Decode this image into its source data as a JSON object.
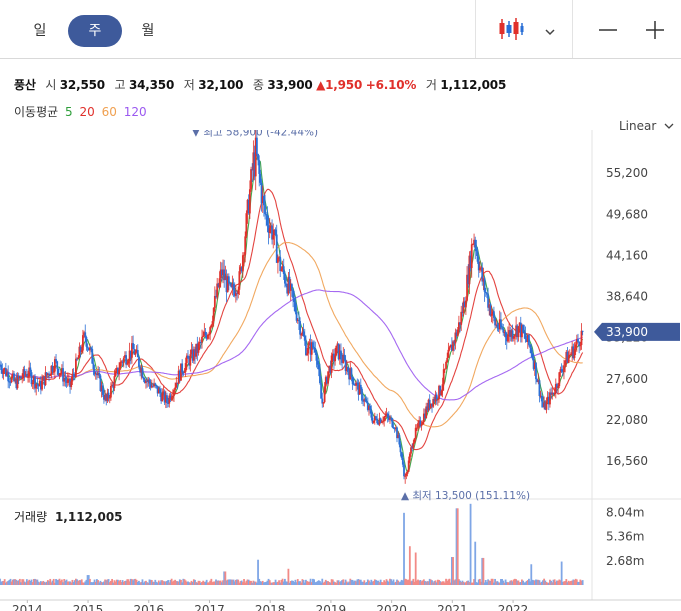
{
  "toolbar": {
    "periods": [
      "일",
      "주",
      "월"
    ],
    "active_period": "주",
    "chart_style_icon": "candlestick-icon",
    "dropdown_icon": "chevron-down-icon",
    "zoom_out_icon": "minus-icon",
    "zoom_in_icon": "plus-icon"
  },
  "quote": {
    "name": "풍산",
    "open_label": "시",
    "open": "32,550",
    "high_label": "고",
    "high": "34,350",
    "low_label": "저",
    "low": "32,100",
    "close_label": "종",
    "close": "33,900",
    "change": "▲1,950",
    "change_pct": "+6.10%",
    "volume_label": "거",
    "volume": "1,112,005"
  },
  "moving_average": {
    "label": "이동평균",
    "periods": [
      {
        "value": "5",
        "color": "#2e9e3a"
      },
      {
        "value": "20",
        "color": "#e0302b"
      },
      {
        "value": "60",
        "color": "#f0a050"
      },
      {
        "value": "120",
        "color": "#9b59f0"
      }
    ]
  },
  "scale_mode": "Linear",
  "colors": {
    "up": "#e0302b",
    "down": "#2a6fd6",
    "accent": "#3e5a9b"
  },
  "chart_data": [
    {
      "type": "candlestick",
      "y_ticks": [
        "55,200",
        "49,680",
        "44,160",
        "38,640",
        "33,120",
        "27,600",
        "22,080",
        "16,560"
      ],
      "y_tick_values": [
        55200,
        49680,
        44160,
        38640,
        33120,
        27600,
        22080,
        16560
      ],
      "ylim": [
        12000,
        61000
      ],
      "x_ticks": [
        "2014",
        "2015",
        "2016",
        "2017",
        "2018",
        "2019",
        "2020",
        "2021",
        "2022"
      ],
      "xlim": [
        2013.55,
        2023.3
      ],
      "current_price": "33,900",
      "current_value": 33900,
      "high_annotation": {
        "label": "최고",
        "value": "58,900",
        "pct": "(-42.44%)",
        "x": 2017.75,
        "y": 58900
      },
      "low_annotation": {
        "label": "최저",
        "value": "13,500",
        "pct": "(151.11%)",
        "x": 2020.22,
        "y": 13500
      },
      "price_path": [
        [
          2013.55,
          29500
        ],
        [
          2013.8,
          27000
        ],
        [
          2014.0,
          28500
        ],
        [
          2014.2,
          26500
        ],
        [
          2014.45,
          29800
        ],
        [
          2014.7,
          26500
        ],
        [
          2014.95,
          33500
        ],
        [
          2015.15,
          28000
        ],
        [
          2015.3,
          24500
        ],
        [
          2015.55,
          30000
        ],
        [
          2015.75,
          31500
        ],
        [
          2015.95,
          27500
        ],
        [
          2016.15,
          26000
        ],
        [
          2016.3,
          24500
        ],
        [
          2016.55,
          29000
        ],
        [
          2016.8,
          31500
        ],
        [
          2017.0,
          34500
        ],
        [
          2017.2,
          42000
        ],
        [
          2017.35,
          39000
        ],
        [
          2017.5,
          41000
        ],
        [
          2017.6,
          48000
        ],
        [
          2017.75,
          58900
        ],
        [
          2017.9,
          50000
        ],
        [
          2018.05,
          47000
        ],
        [
          2018.15,
          43000
        ],
        [
          2018.3,
          40000
        ],
        [
          2018.45,
          36000
        ],
        [
          2018.6,
          31500
        ],
        [
          2018.75,
          32000
        ],
        [
          2018.85,
          24000
        ],
        [
          2018.95,
          28500
        ],
        [
          2019.1,
          31500
        ],
        [
          2019.3,
          28500
        ],
        [
          2019.5,
          25500
        ],
        [
          2019.7,
          22000
        ],
        [
          2019.9,
          22500
        ],
        [
          2020.05,
          21500
        ],
        [
          2020.15,
          18000
        ],
        [
          2020.22,
          13500
        ],
        [
          2020.35,
          19500
        ],
        [
          2020.6,
          24000
        ],
        [
          2020.8,
          26000
        ],
        [
          2020.95,
          31000
        ],
        [
          2021.1,
          34500
        ],
        [
          2021.2,
          38000
        ],
        [
          2021.35,
          47000
        ],
        [
          2021.5,
          40500
        ],
        [
          2021.7,
          35000
        ],
        [
          2021.9,
          33500
        ],
        [
          2022.1,
          34500
        ],
        [
          2022.3,
          31500
        ],
        [
          2022.5,
          23500
        ],
        [
          2022.7,
          26500
        ],
        [
          2022.85,
          30000
        ],
        [
          2023.0,
          31500
        ],
        [
          2023.15,
          33900
        ]
      ],
      "ma_periods_weeks": [
        5,
        20,
        60,
        120
      ],
      "ma_colors": [
        "#2e9e3a",
        "#e0302b",
        "#f0a050",
        "#9b59f0"
      ]
    },
    {
      "type": "bar",
      "title": "거래량",
      "latest_value": "1,112,005",
      "y_ticks": [
        "8.04m",
        "5.36m",
        "2.68m"
      ],
      "y_tick_values": [
        8040000,
        5360000,
        2680000
      ],
      "ylim": [
        0,
        9200000
      ],
      "spikes": [
        [
          2015.0,
          1100000
        ],
        [
          2017.25,
          1500000
        ],
        [
          2017.8,
          2800000
        ],
        [
          2018.3,
          1800000
        ],
        [
          2020.2,
          8000000
        ],
        [
          2020.3,
          4300000
        ],
        [
          2020.4,
          3600000
        ],
        [
          2021.0,
          3100000
        ],
        [
          2021.08,
          8500000
        ],
        [
          2021.3,
          9000000
        ],
        [
          2021.38,
          4800000
        ],
        [
          2021.5,
          3000000
        ],
        [
          2022.3,
          2300000
        ],
        [
          2022.8,
          2600000
        ]
      ]
    }
  ]
}
